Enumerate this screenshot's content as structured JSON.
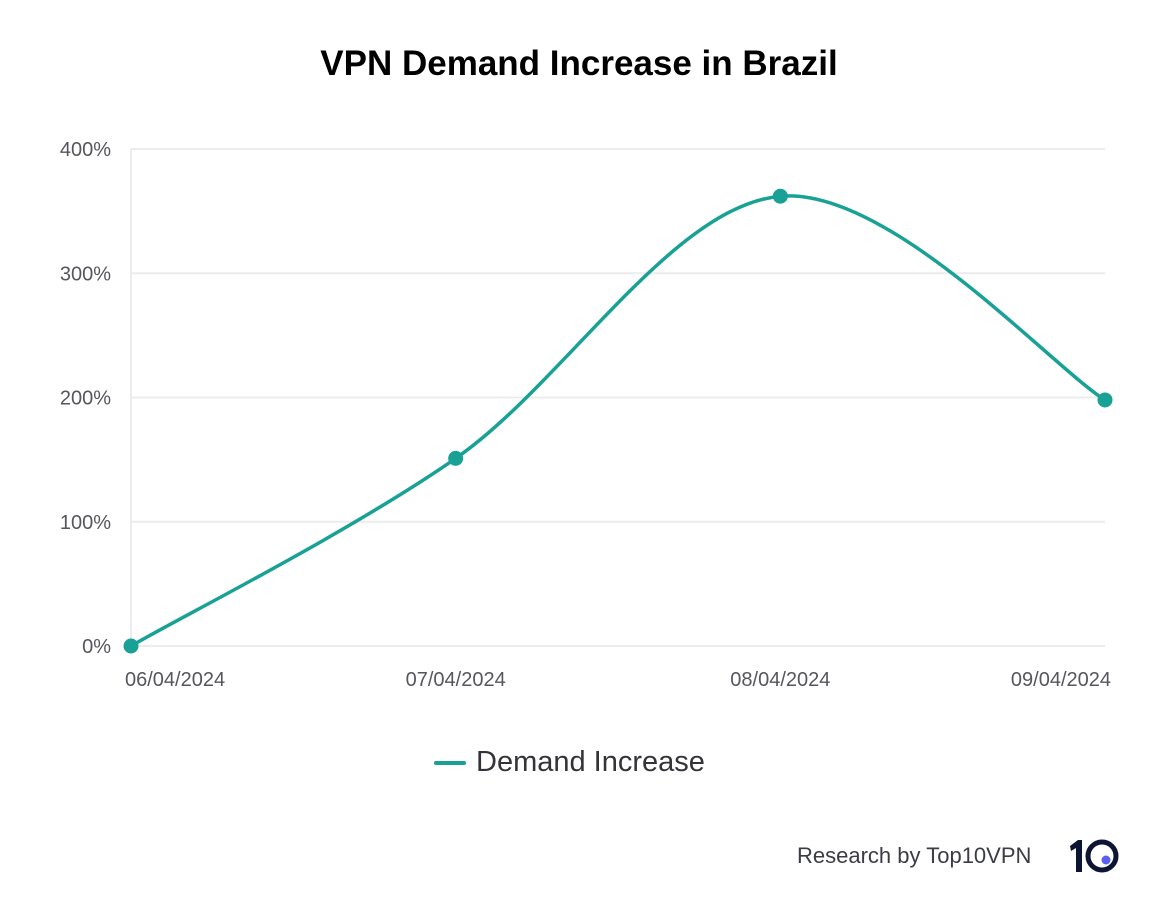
{
  "chart_data": {
    "type": "line",
    "title": "VPN Demand Increase in Brazil",
    "categories": [
      "06/04/2024",
      "07/04/2024",
      "08/04/2024",
      "09/04/2024"
    ],
    "series": [
      {
        "name": "Demand Increase",
        "values": [
          0,
          151,
          362,
          198
        ],
        "color": "#19a196"
      }
    ],
    "ylim": [
      0,
      400
    ],
    "yticks": [
      0,
      100,
      200,
      300,
      400
    ],
    "ytick_labels": [
      "0%",
      "100%",
      "200%",
      "300%",
      "400%"
    ],
    "grid": true,
    "smooth": true,
    "legend_position": "bottom"
  },
  "credit": "Research by Top10VPN",
  "logo": {
    "text": "10",
    "color": "#0c1532",
    "dot_color": "#5b5ff2"
  }
}
